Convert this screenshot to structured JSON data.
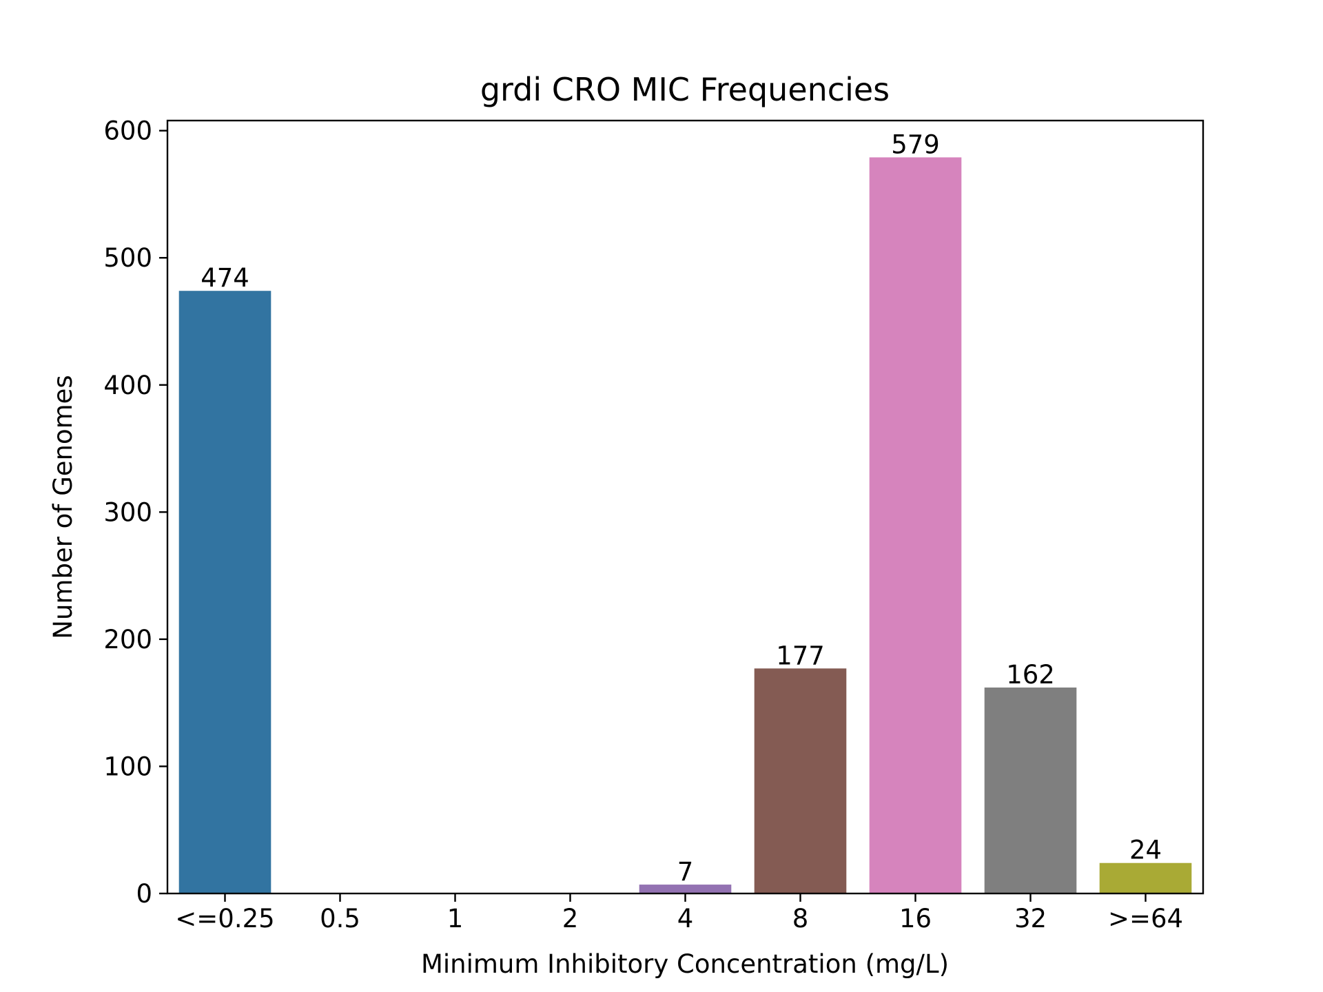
{
  "chart_data": {
    "type": "bar",
    "title": "grdi CRO MIC Frequencies",
    "xlabel": "Minimum Inhibitory Concentration (mg/L)",
    "ylabel": "Number of Genomes",
    "categories": [
      "<=0.25",
      "0.5",
      "1",
      "2",
      "4",
      "8",
      "16",
      "32",
      ">=64"
    ],
    "values": [
      474,
      0,
      0,
      0,
      7,
      177,
      579,
      162,
      24
    ],
    "data_labels": [
      "474",
      "",
      "",
      "",
      "7",
      "177",
      "579",
      "162",
      "24"
    ],
    "colors": [
      "#3274a1",
      "#e1812c",
      "#3a923a",
      "#c03d3e",
      "#9372b2",
      "#845b53",
      "#d684bd",
      "#7f7f7f",
      "#a9aa35"
    ],
    "ylim": [
      0,
      607.95
    ],
    "yticks": [
      0,
      100,
      200,
      300,
      400,
      500,
      600
    ],
    "ytick_labels": [
      "0",
      "100",
      "200",
      "300",
      "400",
      "500",
      "600"
    ],
    "grid": false,
    "legend": "none"
  }
}
